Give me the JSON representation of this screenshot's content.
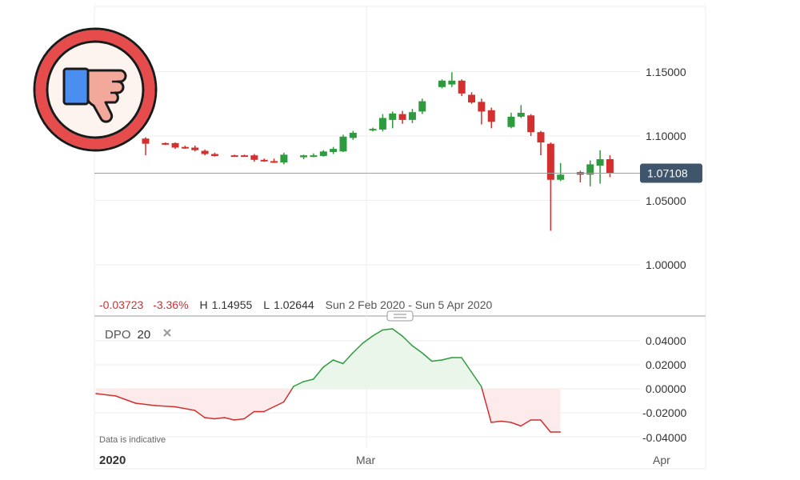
{
  "chart_data": [
    {
      "type": "candlestick",
      "y_ticks": [
        "1.15000",
        "1.10000",
        "1.05000",
        "1.00000"
      ],
      "ylim": [
        0.97,
        1.195
      ],
      "grid": true,
      "current_price": 1.07108,
      "current_price_label": "1.07108",
      "stats": {
        "change": "-0.03723",
        "change_pct": "-3.36%",
        "high_label": "H",
        "high": "1.14955",
        "low_label": "L",
        "low": "1.02644",
        "range": "Sun 2 Feb 2020 - Sun 5 Apr 2020"
      },
      "candles": [
        {
          "x": 0,
          "o": 1.098,
          "h": 1.099,
          "l": 1.085,
          "c": 1.094
        },
        {
          "x": 2,
          "o": 1.0945,
          "h": 1.095,
          "l": 1.093,
          "c": 1.094
        },
        {
          "x": 3,
          "o": 1.0945,
          "h": 1.095,
          "l": 1.09,
          "c": 1.091
        },
        {
          "x": 4,
          "o": 1.0915,
          "h": 1.0925,
          "l": 1.09,
          "c": 1.091
        },
        {
          "x": 5,
          "o": 1.091,
          "h": 1.0925,
          "l": 1.088,
          "c": 1.089
        },
        {
          "x": 6,
          "o": 1.0885,
          "h": 1.0895,
          "l": 1.085,
          "c": 1.086
        },
        {
          "x": 7,
          "o": 1.086,
          "h": 1.087,
          "l": 1.084,
          "c": 1.0845
        },
        {
          "x": 9,
          "o": 1.085,
          "h": 1.0855,
          "l": 1.084,
          "c": 1.0845
        },
        {
          "x": 10,
          "o": 1.085,
          "h": 1.0855,
          "l": 1.084,
          "c": 1.0845
        },
        {
          "x": 11,
          "o": 1.085,
          "h": 1.086,
          "l": 1.08,
          "c": 1.0815
        },
        {
          "x": 12,
          "o": 1.0815,
          "h": 1.0825,
          "l": 1.08,
          "c": 1.0805
        },
        {
          "x": 13,
          "o": 1.0805,
          "h": 1.0825,
          "l": 1.079,
          "c": 1.0795
        },
        {
          "x": 14,
          "o": 1.0795,
          "h": 1.087,
          "l": 1.078,
          "c": 1.0855
        },
        {
          "x": 16,
          "o": 1.0835,
          "h": 1.0855,
          "l": 1.082,
          "c": 1.085
        },
        {
          "x": 17,
          "o": 1.0845,
          "h": 1.0865,
          "l": 1.0835,
          "c": 1.085
        },
        {
          "x": 18,
          "o": 1.0845,
          "h": 1.089,
          "l": 1.084,
          "c": 1.088
        },
        {
          "x": 19,
          "o": 1.0875,
          "h": 1.0915,
          "l": 1.086,
          "c": 1.09
        },
        {
          "x": 20,
          "o": 1.088,
          "h": 1.101,
          "l": 1.0875,
          "c": 1.0995
        },
        {
          "x": 21,
          "o": 1.0985,
          "h": 1.104,
          "l": 1.097,
          "c": 1.1025
        },
        {
          "x": 23,
          "o": 1.1045,
          "h": 1.1065,
          "l": 1.1035,
          "c": 1.1055
        },
        {
          "x": 24,
          "o": 1.105,
          "h": 1.117,
          "l": 1.1035,
          "c": 1.114
        },
        {
          "x": 25,
          "o": 1.1125,
          "h": 1.119,
          "l": 1.106,
          "c": 1.1175
        },
        {
          "x": 26,
          "o": 1.117,
          "h": 1.1195,
          "l": 1.1095,
          "c": 1.1125
        },
        {
          "x": 27,
          "o": 1.1125,
          "h": 1.121,
          "l": 1.11,
          "c": 1.1185
        },
        {
          "x": 28,
          "o": 1.119,
          "h": 1.129,
          "l": 1.117,
          "c": 1.127
        },
        {
          "x": 30,
          "o": 1.138,
          "h": 1.144,
          "l": 1.137,
          "c": 1.143
        },
        {
          "x": 31,
          "o": 1.14,
          "h": 1.1495,
          "l": 1.138,
          "c": 1.143
        },
        {
          "x": 32,
          "o": 1.143,
          "h": 1.144,
          "l": 1.131,
          "c": 1.133
        },
        {
          "x": 33,
          "o": 1.132,
          "h": 1.134,
          "l": 1.125,
          "c": 1.126
        },
        {
          "x": 34,
          "o": 1.1265,
          "h": 1.129,
          "l": 1.109,
          "c": 1.119
        },
        {
          "x": 35,
          "o": 1.12,
          "h": 1.122,
          "l": 1.106,
          "c": 1.111
        },
        {
          "x": 37,
          "o": 1.107,
          "h": 1.118,
          "l": 1.106,
          "c": 1.115
        },
        {
          "x": 38,
          "o": 1.115,
          "h": 1.124,
          "l": 1.114,
          "c": 1.118
        },
        {
          "x": 39,
          "o": 1.116,
          "h": 1.117,
          "l": 1.1,
          "c": 1.103
        },
        {
          "x": 40,
          "o": 1.103,
          "h": 1.104,
          "l": 1.085,
          "c": 1.095
        },
        {
          "x": 41,
          "o": 1.094,
          "h": 1.095,
          "l": 1.0264,
          "c": 1.066
        },
        {
          "x": 42,
          "o": 1.066,
          "h": 1.079,
          "l": 1.065,
          "c": 1.07
        },
        {
          "x": 44,
          "o": 1.072,
          "h": 1.073,
          "l": 1.064,
          "c": 1.07
        },
        {
          "x": 45,
          "o": 1.07,
          "h": 1.081,
          "l": 1.061,
          "c": 1.078
        },
        {
          "x": 46,
          "o": 1.077,
          "h": 1.089,
          "l": 1.063,
          "c": 1.082
        },
        {
          "x": 47,
          "o": 1.082,
          "h": 1.085,
          "l": 1.068,
          "c": 1.071
        }
      ]
    },
    {
      "type": "line",
      "indicator_name": "DPO",
      "indicator_period": "20",
      "y_ticks": [
        "0.04000",
        "0.02000",
        "0.00000",
        "-0.02000",
        "-0.04000"
      ],
      "ylim": [
        -0.045,
        0.052
      ],
      "x": [
        0,
        2,
        4,
        6,
        8,
        10,
        11,
        12,
        13,
        14,
        15,
        16,
        17,
        18,
        19,
        20,
        21,
        22,
        23,
        24,
        25,
        26,
        27,
        28,
        29,
        30,
        31,
        32,
        33,
        34,
        35,
        36,
        37,
        38,
        39,
        40,
        41,
        42,
        43,
        44,
        45,
        46,
        47
      ],
      "values": [
        -0.004,
        -0.006,
        -0.012,
        -0.014,
        -0.015,
        -0.018,
        -0.024,
        -0.025,
        -0.024,
        -0.026,
        -0.025,
        -0.019,
        -0.019,
        -0.015,
        -0.011,
        0.002,
        0.006,
        0.008,
        0.018,
        0.024,
        0.021,
        0.03,
        0.038,
        0.044,
        0.049,
        0.05,
        0.044,
        0.036,
        0.03,
        0.023,
        0.024,
        0.026,
        0.026,
        0.014,
        0.002,
        -0.028,
        -0.027,
        -0.028,
        -0.031,
        -0.026,
        -0.026,
        -0.036,
        -0.036
      ],
      "disclaimer": "Data is indicative"
    }
  ],
  "x_axis": {
    "labels": [
      "2020",
      "Mar",
      "Apr"
    ]
  },
  "badge": {
    "icon": "thumbs-down-icon"
  },
  "colors": {
    "up": "#2e9b3e",
    "down": "#d32f2f",
    "price_tag": "#3f556b",
    "dpo_pos_fill": "#eaf6ea",
    "dpo_neg_fill": "#fdeaea",
    "badge_ring": "#e74c4c"
  }
}
